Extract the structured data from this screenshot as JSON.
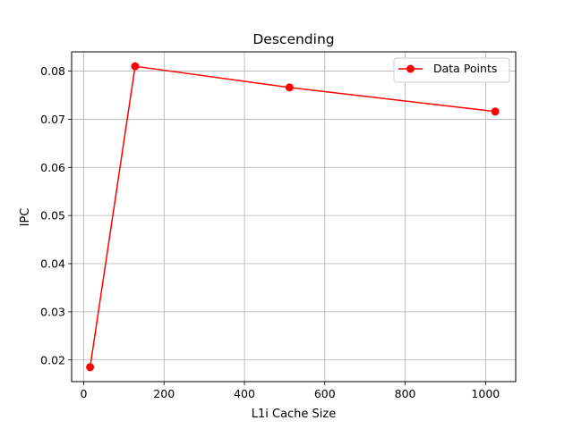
{
  "chart_data": {
    "type": "line",
    "title": "Descending",
    "xlabel": "L1i Cache Size",
    "ylabel": "IPC",
    "xlim": [
      -30,
      1075
    ],
    "ylim": [
      0.0155,
      0.084
    ],
    "xticks": [
      0,
      200,
      400,
      600,
      800,
      1000
    ],
    "yticks": [
      0.02,
      0.03,
      0.04,
      0.05,
      0.06,
      0.07,
      0.08
    ],
    "grid": true,
    "legend_position": "top-right",
    "series": [
      {
        "name": "Data Points",
        "color": "#ff0000",
        "marker": "circle",
        "x": [
          16,
          128,
          512,
          1024
        ],
        "y": [
          0.0185,
          0.081,
          0.0766,
          0.0716
        ]
      }
    ]
  }
}
